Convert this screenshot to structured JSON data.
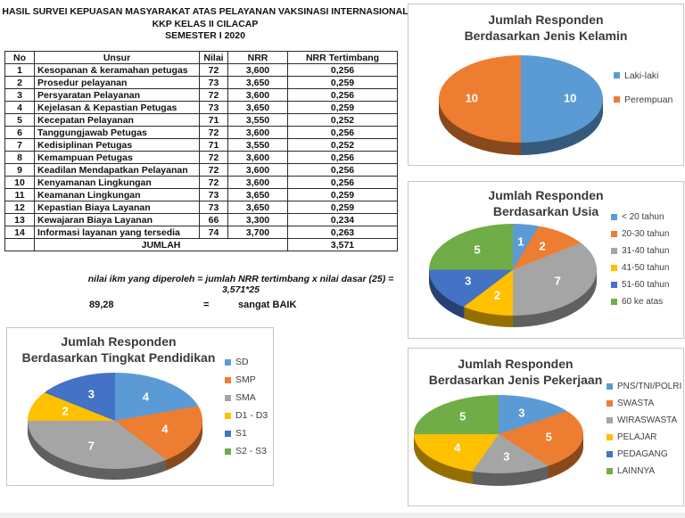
{
  "header": {
    "line1": "HASIL SURVEI KEPUASAN MASYARAKAT ATAS PELAYANAN VAKSINASI INTERNASIONAL",
    "line2": "KKP KELAS II CILACAP",
    "line3": "SEMESTER I 2020"
  },
  "table": {
    "columns": [
      "No",
      "Unsur",
      "Nilai",
      "NRR",
      "NRR Tertimbang"
    ],
    "rows": [
      [
        "1",
        "Kesopanan & keramahan petugas",
        "72",
        "3,600",
        "0,256"
      ],
      [
        "2",
        "Prosedur pelayanan",
        "73",
        "3,650",
        "0,259"
      ],
      [
        "3",
        "Persyaratan Pelayanan",
        "72",
        "3,600",
        "0,256"
      ],
      [
        "4",
        "Kejelasan & Kepastian Petugas",
        "73",
        "3,650",
        "0,259"
      ],
      [
        "5",
        "Kecepatan Pelayanan",
        "71",
        "3,550",
        "0,252"
      ],
      [
        "6",
        "Tanggungjawab Petugas",
        "72",
        "3,600",
        "0,256"
      ],
      [
        "7",
        "Kedisiplinan Petugas",
        "71",
        "3,550",
        "0,252"
      ],
      [
        "8",
        "Kemampuan Petugas",
        "72",
        "3,600",
        "0,256"
      ],
      [
        "9",
        "Keadilan Mendapatkan Pelayanan",
        "72",
        "3,600",
        "0,256"
      ],
      [
        "10",
        "Kenyamanan Lingkungan",
        "72",
        "3,600",
        "0,256"
      ],
      [
        "11",
        "Keamanan Lingkungan",
        "73",
        "3,650",
        "0,259"
      ],
      [
        "12",
        "Kepastian Biaya Layanan",
        "73",
        "3,650",
        "0,259"
      ],
      [
        "13",
        "Kewajaran Biaya Layanan",
        "66",
        "3,300",
        "0,234"
      ],
      [
        "14",
        "Informasi layanan yang tersedia",
        "74",
        "3,700",
        "0,263"
      ]
    ],
    "total_label": "JUMLAH",
    "total_value": "3,571"
  },
  "note": {
    "formula": "nilai ikm yang diperoleh = jumlah NRR tertimbang x nilai dasar (25) = 3,571*25",
    "score": "89,28",
    "equals": "=",
    "verdict": "sangat BAIK"
  },
  "palette": {
    "blue": "#5B9BD5",
    "orange": "#ED7D31",
    "gray": "#A5A5A5",
    "yellow": "#FFC000",
    "dark_blue": "#4472C4",
    "green": "#70AD47"
  },
  "chart_data": [
    {
      "id": "kelamin",
      "type": "pie",
      "title": "Jumlah Responden Berdasarkan Jenis Kelamin",
      "title_lines": [
        "Jumlah Responden",
        "Berdasarkan Jenis Kelamin"
      ],
      "legend_position": "right",
      "data_labels": "values",
      "categories": [
        "Laki-laki",
        "Perempuan"
      ],
      "values": [
        10,
        10
      ],
      "colors": [
        "#5B9BD5",
        "#ED7D31"
      ]
    },
    {
      "id": "usia",
      "type": "pie",
      "title": "Jumlah Responden Berdasarkan Usia",
      "title_lines": [
        "Jumlah Responden",
        "Berdasarkan Usia"
      ],
      "legend_position": "right",
      "data_labels": "values",
      "categories": [
        "< 20 tahun",
        "20-30 tahun",
        "31-40 tahun",
        "41-50 tahun",
        "51-60 tahun",
        "60 ke atas"
      ],
      "values": [
        1,
        2,
        7,
        2,
        3,
        5
      ],
      "colors": [
        "#5B9BD5",
        "#ED7D31",
        "#A5A5A5",
        "#FFC000",
        "#4472C4",
        "#70AD47"
      ]
    },
    {
      "id": "pekerjaan",
      "type": "pie",
      "title": "Jumlah Responden Berdasarkan Jenis Pekerjaan",
      "title_lines": [
        "Jumlah Responden",
        "Berdasarkan Jenis Pekerjaan"
      ],
      "legend_position": "right",
      "data_labels": "values",
      "categories": [
        "PNS/TNI/POLRI",
        "SWASTA",
        "WIRASWASTA",
        "PELAJAR",
        "PEDAGANG",
        "LAINNYA"
      ],
      "values": [
        3,
        5,
        3,
        4,
        0,
        5
      ],
      "colors": [
        "#5B9BD5",
        "#ED7D31",
        "#A5A5A5",
        "#FFC000",
        "#4472C4",
        "#70AD47"
      ]
    },
    {
      "id": "pendidikan",
      "type": "pie",
      "title": "Jumlah Responden Berdasarkan Tingkat Pendidikan",
      "title_lines": [
        "Jumlah Responden",
        "Berdasarkan Tingkat Pendidikan"
      ],
      "legend_position": "right",
      "data_labels": "values",
      "categories": [
        "SD",
        "SMP",
        "SMA",
        "D1 - D3",
        "S1",
        "S2 - S3"
      ],
      "values": [
        4,
        4,
        7,
        2,
        3,
        0
      ],
      "colors": [
        "#5B9BD5",
        "#ED7D31",
        "#A5A5A5",
        "#FFC000",
        "#4472C4",
        "#70AD47"
      ]
    }
  ]
}
